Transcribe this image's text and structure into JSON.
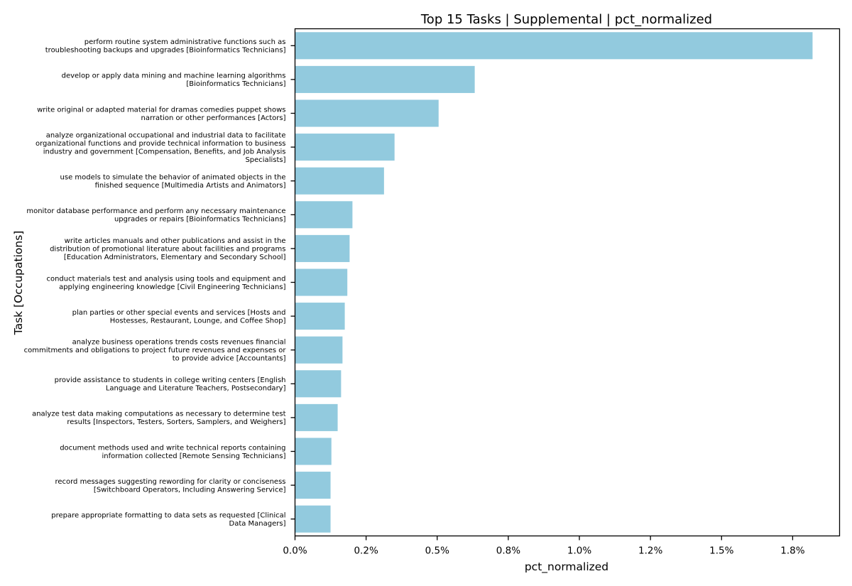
{
  "chart_data": {
    "type": "bar",
    "orientation": "horizontal",
    "title": "Top 15 Tasks | Supplemental | pct_normalized",
    "xlabel": "pct_normalized",
    "ylabel": "Task [Occupations]",
    "bar_color": "#92cade",
    "xlim": [
      0,
      1.915
    ],
    "grid": false,
    "legend": "none",
    "xticks": [
      {
        "value": 0.0,
        "label": "0.0%"
      },
      {
        "value": 0.25,
        "label": "0.2%"
      },
      {
        "value": 0.5,
        "label": "0.5%"
      },
      {
        "value": 0.75,
        "label": "0.8%"
      },
      {
        "value": 1.0,
        "label": "1.0%"
      },
      {
        "value": 1.25,
        "label": "1.2%"
      },
      {
        "value": 1.5,
        "label": "1.5%"
      },
      {
        "value": 1.75,
        "label": "1.8%"
      }
    ],
    "categories": [
      [
        "perform routine system administrative functions such as",
        "troubleshooting backups and upgrades  [Bioinformatics Technicians]"
      ],
      [
        "develop or apply data mining and machine learning algorithms",
        "[Bioinformatics Technicians]"
      ],
      [
        "write original or adapted material for dramas comedies puppet shows",
        "narration or other performances  [Actors]"
      ],
      [
        "analyze organizational occupational and industrial data to facilitate",
        "organizational functions and provide technical information to business",
        "industry and government  [Compensation, Benefits, and Job Analysis",
        "Specialists]"
      ],
      [
        "use models to simulate the behavior of animated objects in the",
        "finished sequence  [Multimedia Artists and Animators]"
      ],
      [
        "monitor database performance and perform any necessary maintenance",
        "upgrades or repairs  [Bioinformatics Technicians]"
      ],
      [
        "write articles manuals and other publications and assist in the",
        "distribution of promotional literature about facilities and programs",
        "[Education Administrators, Elementary and Secondary School]"
      ],
      [
        "conduct materials test and analysis using tools and equipment and",
        "applying engineering knowledge  [Civil Engineering Technicians]"
      ],
      [
        "plan parties or other special events and services  [Hosts and",
        "Hostesses, Restaurant, Lounge, and Coffee Shop]"
      ],
      [
        "analyze business operations trends costs revenues financial",
        "commitments and obligations to project future revenues and expenses or",
        "to provide advice  [Accountants]"
      ],
      [
        "provide assistance to students in college writing centers  [English",
        "Language and Literature Teachers, Postsecondary]"
      ],
      [
        "analyze test data making computations as necessary to determine test",
        "results  [Inspectors, Testers, Sorters, Samplers, and Weighers]"
      ],
      [
        "document methods used and write technical reports containing",
        "information collected  [Remote Sensing Technicians]"
      ],
      [
        "record messages suggesting rewording for clarity or conciseness",
        "[Switchboard Operators, Including Answering Service]"
      ],
      [
        "prepare appropriate formatting to data sets as requested  [Clinical",
        "Data Managers]"
      ]
    ],
    "values": [
      1.82,
      0.632,
      0.505,
      0.35,
      0.313,
      0.202,
      0.192,
      0.184,
      0.175,
      0.167,
      0.162,
      0.15,
      0.128,
      0.125,
      0.125
    ]
  }
}
